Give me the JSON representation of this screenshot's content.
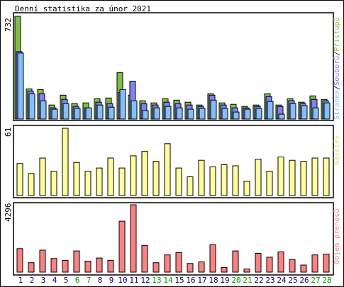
{
  "title": "Denní statistika za únor 2021",
  "colors": {
    "hits": "#80c040",
    "files": "#8080ff",
    "pages": "#80c0ff",
    "visits": "#ffff99",
    "kbytes": "#ff8080",
    "weekend_label": "#00a000",
    "weekday_label": "#000080",
    "frame": "#000000"
  },
  "panel_labels": {
    "top_hits": "Přístupů",
    "top_files": "Souborů",
    "top_pages": "Stránek",
    "sep": "/",
    "mid": "Návštěv",
    "bottom": "Objem přenosů"
  },
  "chart_data": [
    {
      "type": "bar",
      "id": "hits_files_pages",
      "ymax_label": "732",
      "ylim": [
        0,
        732
      ],
      "categories": [
        "1",
        "2",
        "3",
        "4",
        "5",
        "6",
        "7",
        "8",
        "9",
        "10",
        "11",
        "12",
        "13",
        "14",
        "15",
        "16",
        "17",
        "18",
        "19",
        "20",
        "21",
        "22",
        "23",
        "24",
        "25",
        "26",
        "27",
        "28"
      ],
      "weekend": [
        false,
        false,
        false,
        false,
        false,
        true,
        true,
        false,
        false,
        false,
        false,
        false,
        true,
        true,
        false,
        false,
        false,
        false,
        false,
        true,
        true,
        false,
        false,
        false,
        false,
        false,
        true,
        true
      ],
      "series": [
        {
          "name": "Přístupů",
          "values": [
            732,
            215,
            210,
            100,
            170,
            110,
            115,
            145,
            150,
            330,
            170,
            130,
            115,
            145,
            135,
            120,
            100,
            180,
            115,
            105,
            90,
            100,
            180,
            100,
            145,
            120,
            165,
            140
          ]
        },
        {
          "name": "Souborů",
          "values": [
            480,
            200,
            180,
            80,
            140,
            90,
            80,
            120,
            110,
            190,
            270,
            110,
            100,
            120,
            110,
            100,
            90,
            170,
            100,
            80,
            80,
            90,
            160,
            90,
            130,
            110,
            140,
            130
          ]
        },
        {
          "name": "Stránek",
          "values": [
            470,
            180,
            130,
            70,
            110,
            75,
            80,
            100,
            85,
            210,
            130,
            60,
            80,
            90,
            80,
            70,
            75,
            135,
            75,
            50,
            70,
            75,
            125,
            35,
            110,
            95,
            80,
            115
          ]
        }
      ]
    },
    {
      "type": "bar",
      "id": "visits",
      "ymax_label": "61",
      "ylim": [
        0,
        61
      ],
      "categories": [
        "1",
        "2",
        "3",
        "4",
        "5",
        "6",
        "7",
        "8",
        "9",
        "10",
        "11",
        "12",
        "13",
        "14",
        "15",
        "16",
        "17",
        "18",
        "19",
        "20",
        "21",
        "22",
        "23",
        "24",
        "25",
        "26",
        "27",
        "28"
      ],
      "series": [
        {
          "name": "Návštěv",
          "values": [
            29,
            20,
            34,
            22,
            61,
            30,
            22,
            25,
            34,
            25,
            36,
            40,
            31,
            47,
            25,
            17,
            32,
            26,
            28,
            27,
            13,
            33,
            22,
            35,
            32,
            31,
            34,
            34
          ]
        }
      ]
    },
    {
      "type": "bar",
      "id": "kbytes",
      "ymax_label": "4296",
      "ylim": [
        0,
        4296
      ],
      "categories": [
        "1",
        "2",
        "3",
        "4",
        "5",
        "6",
        "7",
        "8",
        "9",
        "10",
        "11",
        "12",
        "13",
        "14",
        "15",
        "16",
        "17",
        "18",
        "19",
        "20",
        "21",
        "22",
        "23",
        "24",
        "25",
        "26",
        "27",
        "28"
      ],
      "series": [
        {
          "name": "Objem přenosů",
          "values": [
            1500,
            600,
            1400,
            870,
            750,
            1350,
            700,
            900,
            750,
            3250,
            4296,
            1700,
            600,
            1100,
            1250,
            550,
            650,
            1750,
            300,
            1350,
            200,
            1200,
            950,
            1300,
            800,
            450,
            1100,
            1150
          ]
        }
      ]
    }
  ]
}
